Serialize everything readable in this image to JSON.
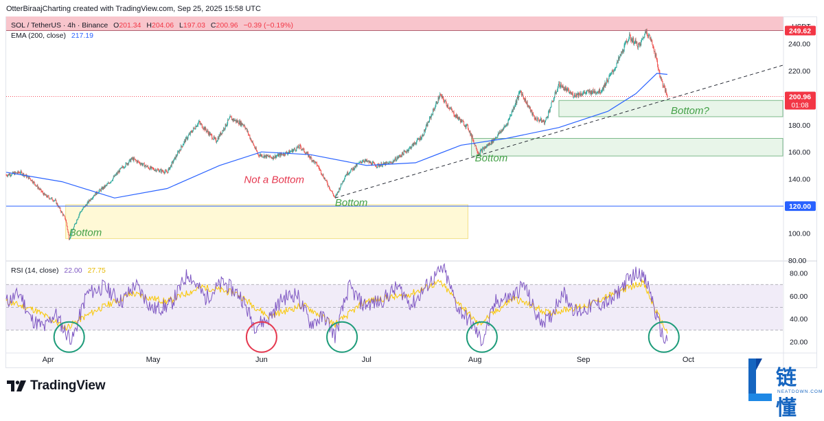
{
  "header": {
    "title": "OtterBiraajCharting created with TradingView.com, Sep 25, 2025 15:58 UTC"
  },
  "legend": {
    "symbol": "SOL / TetherUS · 4h · Binance",
    "open_label": "O",
    "open": "201.34",
    "high_label": "H",
    "high": "204.06",
    "low_label": "L",
    "low": "197.03",
    "close_label": "C",
    "close": "200.96",
    "change": "−0.39 (−0.19%)",
    "ema_label": "EMA (200, close)",
    "ema_value": "217.19",
    "rsi_label": "RSI (14, close)",
    "rsi_value": "22.00",
    "rsi_ma_value": "27.75"
  },
  "colors": {
    "up": "#26a69a",
    "down": "#ef5350",
    "ema": "#2962ff",
    "rsi": "#7e57c2",
    "rsi_ma": "#f9c700",
    "resistance_zone": "#f8c5cc",
    "support_zone": "#e8f5e9",
    "yellow_zone": "#fff9d6",
    "annotation_green": "#43a047",
    "annotation_red": "#e53950",
    "price_tag_red": "#f23645",
    "price_tag_blue": "#2962ff"
  },
  "chart_data": {
    "type": "candlestick",
    "price_axis": {
      "currency": "USDT",
      "ticks": [
        "240.00",
        "220.00",
        "200.00",
        "180.00",
        "160.00",
        "140.00",
        "120.00",
        "100.00",
        "80.00"
      ],
      "ylim": [
        80,
        260
      ]
    },
    "time_axis": {
      "ticks": [
        "Apr",
        "May",
        "Jun",
        "Jul",
        "Aug",
        "Sep",
        "Oct"
      ],
      "range": [
        "2025-03-20",
        "2025-10-28"
      ]
    },
    "price_tags": [
      {
        "label": "249.62",
        "value": 249.62,
        "color": "red"
      },
      {
        "label": "200.96",
        "value": 200.96,
        "sublabel": "01:08",
        "color": "red"
      },
      {
        "label": "120.00",
        "value": 120.0,
        "color": "blue"
      }
    ],
    "price_path": [
      {
        "date": "2025-03-20",
        "price": 143
      },
      {
        "date": "2025-03-24",
        "price": 145
      },
      {
        "date": "2025-03-27",
        "price": 140
      },
      {
        "date": "2025-03-31",
        "price": 128
      },
      {
        "date": "2025-04-03",
        "price": 124
      },
      {
        "date": "2025-04-06",
        "price": 110
      },
      {
        "date": "2025-04-07",
        "price": 96
      },
      {
        "date": "2025-04-10",
        "price": 115
      },
      {
        "date": "2025-04-14",
        "price": 128
      },
      {
        "date": "2025-04-18",
        "price": 136
      },
      {
        "date": "2025-04-22",
        "price": 148
      },
      {
        "date": "2025-04-25",
        "price": 155
      },
      {
        "date": "2025-04-30",
        "price": 148
      },
      {
        "date": "2025-05-05",
        "price": 145
      },
      {
        "date": "2025-05-10",
        "price": 168
      },
      {
        "date": "2025-05-14",
        "price": 182
      },
      {
        "date": "2025-05-19",
        "price": 168
      },
      {
        "date": "2025-05-23",
        "price": 185
      },
      {
        "date": "2025-05-27",
        "price": 180
      },
      {
        "date": "2025-05-31",
        "price": 158
      },
      {
        "date": "2025-06-04",
        "price": 156
      },
      {
        "date": "2025-06-09",
        "price": 160
      },
      {
        "date": "2025-06-12",
        "price": 164
      },
      {
        "date": "2025-06-17",
        "price": 150
      },
      {
        "date": "2025-06-22",
        "price": 126
      },
      {
        "date": "2025-06-25",
        "price": 143
      },
      {
        "date": "2025-06-30",
        "price": 154
      },
      {
        "date": "2025-07-04",
        "price": 150
      },
      {
        "date": "2025-07-08",
        "price": 152
      },
      {
        "date": "2025-07-13",
        "price": 162
      },
      {
        "date": "2025-07-17",
        "price": 172
      },
      {
        "date": "2025-07-22",
        "price": 202
      },
      {
        "date": "2025-07-26",
        "price": 188
      },
      {
        "date": "2025-07-30",
        "price": 178
      },
      {
        "date": "2025-08-02",
        "price": 159
      },
      {
        "date": "2025-08-06",
        "price": 168
      },
      {
        "date": "2025-08-10",
        "price": 180
      },
      {
        "date": "2025-08-14",
        "price": 205
      },
      {
        "date": "2025-08-18",
        "price": 185
      },
      {
        "date": "2025-08-21",
        "price": 182
      },
      {
        "date": "2025-08-25",
        "price": 210
      },
      {
        "date": "2025-08-29",
        "price": 202
      },
      {
        "date": "2025-09-02",
        "price": 204
      },
      {
        "date": "2025-09-06",
        "price": 205
      },
      {
        "date": "2025-09-10",
        "price": 222
      },
      {
        "date": "2025-09-14",
        "price": 245
      },
      {
        "date": "2025-09-17",
        "price": 238
      },
      {
        "date": "2025-09-19",
        "price": 250
      },
      {
        "date": "2025-09-21",
        "price": 238
      },
      {
        "date": "2025-09-23",
        "price": 215
      },
      {
        "date": "2025-09-25",
        "price": 201
      }
    ],
    "ema_path": [
      {
        "date": "2025-03-20",
        "price": 145
      },
      {
        "date": "2025-04-05",
        "price": 138
      },
      {
        "date": "2025-04-20",
        "price": 126
      },
      {
        "date": "2025-05-05",
        "price": 133
      },
      {
        "date": "2025-05-20",
        "price": 150
      },
      {
        "date": "2025-06-01",
        "price": 160
      },
      {
        "date": "2025-06-15",
        "price": 158
      },
      {
        "date": "2025-07-01",
        "price": 150
      },
      {
        "date": "2025-07-15",
        "price": 152
      },
      {
        "date": "2025-07-28",
        "price": 165
      },
      {
        "date": "2025-08-10",
        "price": 170
      },
      {
        "date": "2025-08-25",
        "price": 178
      },
      {
        "date": "2025-09-08",
        "price": 190
      },
      {
        "date": "2025-09-16",
        "price": 203
      },
      {
        "date": "2025-09-22",
        "price": 218
      },
      {
        "date": "2025-09-25",
        "price": 217.19
      }
    ],
    "rsi": {
      "ticks": [
        "80.00",
        "60.00",
        "40.00",
        "20.00"
      ],
      "ylim": [
        10,
        90
      ],
      "band": [
        30,
        70
      ],
      "midline": 50
    },
    "rsi_path": [
      {
        "date": "2025-03-20",
        "value": 55
      },
      {
        "date": "2025-03-24",
        "value": 62
      },
      {
        "date": "2025-03-27",
        "value": 40
      },
      {
        "date": "2025-03-31",
        "value": 32
      },
      {
        "date": "2025-04-03",
        "value": 45
      },
      {
        "date": "2025-04-06",
        "value": 28
      },
      {
        "date": "2025-04-08",
        "value": 22
      },
      {
        "date": "2025-04-12",
        "value": 62
      },
      {
        "date": "2025-04-17",
        "value": 68
      },
      {
        "date": "2025-04-22",
        "value": 55
      },
      {
        "date": "2025-04-26",
        "value": 70
      },
      {
        "date": "2025-05-01",
        "value": 48
      },
      {
        "date": "2025-05-06",
        "value": 52
      },
      {
        "date": "2025-05-11",
        "value": 80
      },
      {
        "date": "2025-05-16",
        "value": 58
      },
      {
        "date": "2025-05-21",
        "value": 72
      },
      {
        "date": "2025-05-26",
        "value": 60
      },
      {
        "date": "2025-05-30",
        "value": 34
      },
      {
        "date": "2025-06-03",
        "value": 40
      },
      {
        "date": "2025-06-07",
        "value": 58
      },
      {
        "date": "2025-06-11",
        "value": 62
      },
      {
        "date": "2025-06-15",
        "value": 36
      },
      {
        "date": "2025-06-19",
        "value": 42
      },
      {
        "date": "2025-06-22",
        "value": 25
      },
      {
        "date": "2025-06-26",
        "value": 68
      },
      {
        "date": "2025-06-30",
        "value": 52
      },
      {
        "date": "2025-07-05",
        "value": 55
      },
      {
        "date": "2025-07-10",
        "value": 68
      },
      {
        "date": "2025-07-14",
        "value": 52
      },
      {
        "date": "2025-07-19",
        "value": 72
      },
      {
        "date": "2025-07-23",
        "value": 84
      },
      {
        "date": "2025-07-27",
        "value": 50
      },
      {
        "date": "2025-07-31",
        "value": 36
      },
      {
        "date": "2025-08-03",
        "value": 20
      },
      {
        "date": "2025-08-07",
        "value": 55
      },
      {
        "date": "2025-08-12",
        "value": 60
      },
      {
        "date": "2025-08-15",
        "value": 70
      },
      {
        "date": "2025-08-19",
        "value": 40
      },
      {
        "date": "2025-08-22",
        "value": 38
      },
      {
        "date": "2025-08-26",
        "value": 64
      },
      {
        "date": "2025-08-30",
        "value": 45
      },
      {
        "date": "2025-09-04",
        "value": 52
      },
      {
        "date": "2025-09-09",
        "value": 55
      },
      {
        "date": "2025-09-13",
        "value": 72
      },
      {
        "date": "2025-09-17",
        "value": 82
      },
      {
        "date": "2025-09-20",
        "value": 65
      },
      {
        "date": "2025-09-22",
        "value": 40
      },
      {
        "date": "2025-09-24",
        "value": 22
      },
      {
        "date": "2025-09-25",
        "value": 22
      }
    ],
    "rsi_ma_path": [
      {
        "date": "2025-03-20",
        "value": 55
      },
      {
        "date": "2025-03-28",
        "value": 48
      },
      {
        "date": "2025-04-06",
        "value": 32
      },
      {
        "date": "2025-04-15",
        "value": 48
      },
      {
        "date": "2025-04-25",
        "value": 62
      },
      {
        "date": "2025-05-05",
        "value": 55
      },
      {
        "date": "2025-05-15",
        "value": 68
      },
      {
        "date": "2025-05-25",
        "value": 62
      },
      {
        "date": "2025-06-03",
        "value": 42
      },
      {
        "date": "2025-06-13",
        "value": 52
      },
      {
        "date": "2025-06-22",
        "value": 35
      },
      {
        "date": "2025-07-01",
        "value": 56
      },
      {
        "date": "2025-07-12",
        "value": 60
      },
      {
        "date": "2025-07-22",
        "value": 72
      },
      {
        "date": "2025-08-02",
        "value": 35
      },
      {
        "date": "2025-08-12",
        "value": 58
      },
      {
        "date": "2025-08-22",
        "value": 45
      },
      {
        "date": "2025-09-02",
        "value": 52
      },
      {
        "date": "2025-09-12",
        "value": 65
      },
      {
        "date": "2025-09-18",
        "value": 72
      },
      {
        "date": "2025-09-22",
        "value": 45
      },
      {
        "date": "2025-09-25",
        "value": 27.75
      }
    ],
    "zones": [
      {
        "name": "resistance",
        "from": 249.62,
        "to": 262
      },
      {
        "name": "support-upper",
        "from": 186,
        "to": 198,
        "start": "2025-08-25",
        "end": "2025-10-28"
      },
      {
        "name": "support-lower",
        "from": 157,
        "to": 170,
        "start": "2025-07-31",
        "end": "2025-10-28"
      },
      {
        "name": "yellow",
        "from": 96,
        "to": 121,
        "start": "2025-04-06",
        "end": "2025-07-30"
      }
    ],
    "trendline": {
      "start": {
        "date": "2025-06-22",
        "price": 126
      },
      "end": {
        "date": "2025-10-28",
        "price": 224
      }
    },
    "annotations": [
      {
        "text": "Bottom",
        "color": "green",
        "date": "2025-04-07",
        "price": 98
      },
      {
        "text": "Not a Bottom",
        "color": "red",
        "date": "2025-05-27",
        "price": 137
      },
      {
        "text": "Bottom",
        "color": "green",
        "date": "2025-06-22",
        "price": 120
      },
      {
        "text": "Bottom",
        "color": "green",
        "date": "2025-08-01",
        "price": 153
      },
      {
        "text": "Bottom?",
        "color": "green",
        "date": "2025-09-26",
        "price": 188
      }
    ],
    "rsi_circles": [
      {
        "date": "2025-04-07",
        "color": "green"
      },
      {
        "date": "2025-06-01",
        "color": "red"
      },
      {
        "date": "2025-06-24",
        "color": "green"
      },
      {
        "date": "2025-08-03",
        "color": "green"
      },
      {
        "date": "2025-09-24",
        "color": "green"
      }
    ]
  },
  "watermark": {
    "cn": "链懂",
    "en": "NEATDOWN.COM"
  },
  "footer": {
    "brand": "TradingView"
  }
}
